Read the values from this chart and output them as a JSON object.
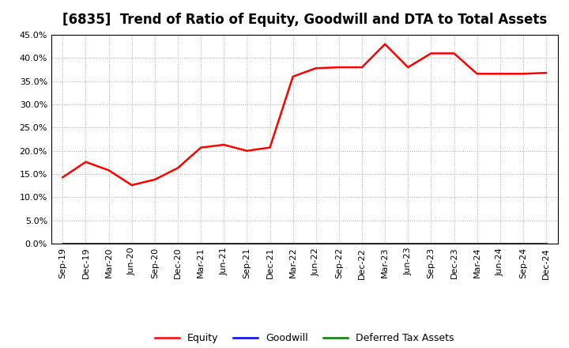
{
  "title": "[6835]  Trend of Ratio of Equity, Goodwill and DTA to Total Assets",
  "x_labels": [
    "Sep-19",
    "Dec-19",
    "Mar-20",
    "Jun-20",
    "Sep-20",
    "Dec-20",
    "Mar-21",
    "Jun-21",
    "Sep-21",
    "Dec-21",
    "Mar-22",
    "Jun-22",
    "Sep-22",
    "Dec-22",
    "Mar-23",
    "Jun-23",
    "Sep-23",
    "Dec-23",
    "Mar-24",
    "Jun-24",
    "Sep-24",
    "Dec-24"
  ],
  "equity": [
    0.143,
    0.176,
    0.158,
    0.126,
    0.138,
    0.163,
    0.207,
    0.213,
    0.2,
    0.207,
    0.36,
    0.378,
    0.38,
    0.38,
    0.43,
    0.38,
    0.41,
    0.41,
    0.366,
    0.366,
    0.366,
    0.368
  ],
  "goodwill": [
    0.0,
    0.0,
    0.0,
    0.0,
    0.0,
    0.0,
    0.0,
    0.0,
    0.0,
    0.0,
    0.0,
    0.0,
    0.0,
    0.0,
    0.0,
    0.0,
    0.0,
    0.0,
    0.0,
    0.0,
    0.0,
    0.0
  ],
  "dta": [
    0.0,
    0.0,
    0.0,
    0.0,
    0.0,
    0.0,
    0.0,
    0.0,
    0.0,
    0.0,
    0.0,
    0.0,
    0.0,
    0.0,
    0.0,
    0.0,
    0.0,
    0.0,
    0.0,
    0.0,
    0.0,
    0.0
  ],
  "equity_color": "#ff0000",
  "goodwill_color": "#0000ff",
  "dta_color": "#008000",
  "ylim": [
    0.0,
    0.45
  ],
  "yticks": [
    0.0,
    0.05,
    0.1,
    0.15,
    0.2,
    0.25,
    0.3,
    0.35,
    0.4,
    0.45
  ],
  "background_color": "#ffffff",
  "plot_bg_color": "#ffffff",
  "grid_color": "#aaaaaa",
  "title_fontsize": 12,
  "axis_fontsize": 8,
  "legend_fontsize": 9
}
